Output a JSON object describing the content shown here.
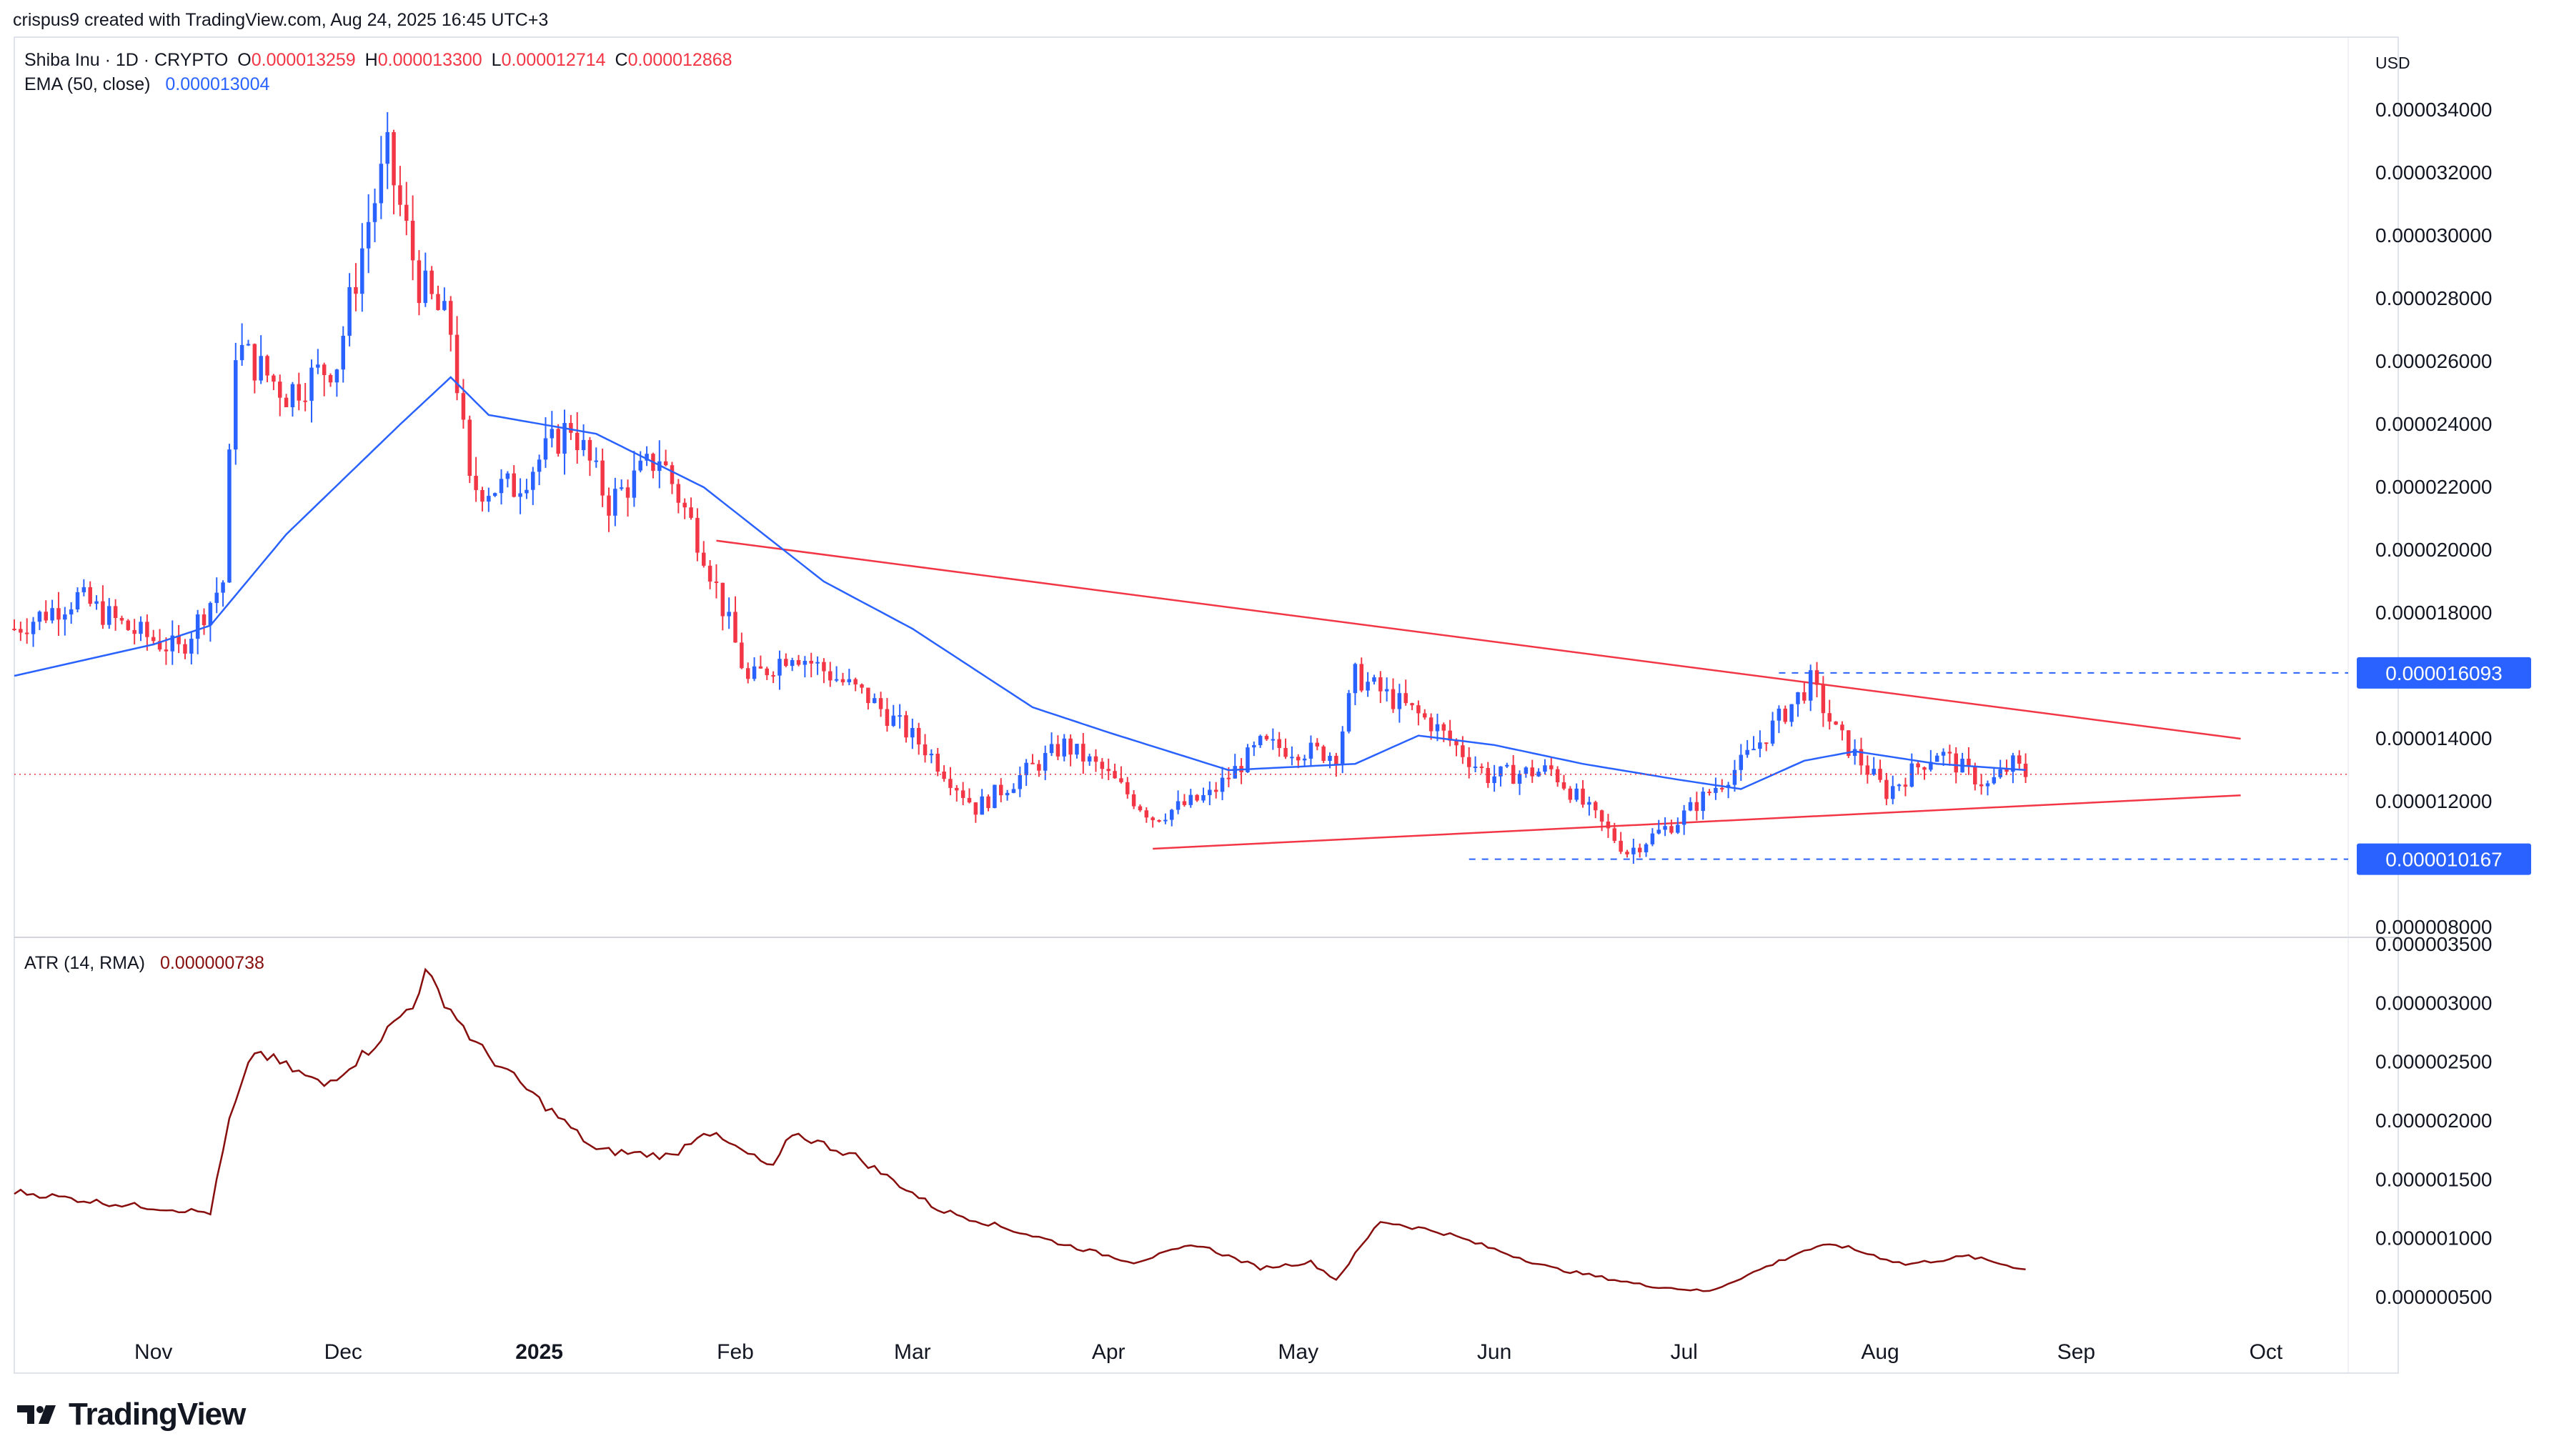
{
  "credit": "crispus9 created with TradingView.com, Aug 24, 2025 16:45 UTC+3",
  "brand": "TradingView",
  "currency": "USD",
  "ohlc_legend": {
    "symbol": "Shiba Inu · 1D · CRYPTO",
    "o_label": "O",
    "o_value": "0.000013259",
    "h_label": "H",
    "h_value": "0.000013300",
    "l_label": "L",
    "l_value": "0.000012714",
    "c_label": "C",
    "c_value": "0.000012868"
  },
  "ema_legend": {
    "label": "EMA (50, close)",
    "value": "0.000013004"
  },
  "atr_legend": {
    "label": "ATR (14, RMA)",
    "value": "0.000000738"
  },
  "price_labels": {
    "resistance": "0.000016093",
    "support": "0.000010167"
  },
  "colors": {
    "up": "#2962ff",
    "down": "#f23645",
    "ema": "#2962ff",
    "atr": "#880e0e",
    "trendline": "#f23645",
    "grid": "#e0e3eb"
  },
  "chart_data": [
    {
      "type": "candlestick",
      "title": "Shiba Inu · 1D · CRYPTO",
      "x_labels": [
        "Nov",
        "Dec",
        "2025",
        "Feb",
        "Mar",
        "Apr",
        "May",
        "Jun",
        "Jul",
        "Aug",
        "Sep",
        "Oct"
      ],
      "x_label_dates": [
        "2024-11-01",
        "2024-12-01",
        "2025-01-01",
        "2025-02-01",
        "2025-03-01",
        "2025-04-01",
        "2025-05-01",
        "2025-06-01",
        "2025-07-01",
        "2025-08-01",
        "2025-09-01",
        "2025-10-01"
      ],
      "x_range": [
        "2024-10-10",
        "2025-10-14"
      ],
      "y_ticks": [
        "0.000034000",
        "0.000032000",
        "0.000030000",
        "0.000028000",
        "0.000026000",
        "0.000024000",
        "0.000022000",
        "0.000020000",
        "0.000018000",
        "0.000014000",
        "0.000012000",
        "0.000008000"
      ],
      "ylim": [
        8e-06,
        3.53e-05
      ],
      "series_close_anchors": [
        [
          "2024-10-10",
          1.75e-05
        ],
        [
          "2024-10-20",
          1.85e-05
        ],
        [
          "2024-10-28",
          1.75e-05
        ],
        [
          "2024-11-05",
          1.68e-05
        ],
        [
          "2024-11-12",
          1.9e-05
        ],
        [
          "2024-11-14",
          2.65e-05
        ],
        [
          "2024-11-22",
          2.5e-05
        ],
        [
          "2024-11-30",
          2.6e-05
        ],
        [
          "2024-12-05",
          3.05e-05
        ],
        [
          "2024-12-08",
          3.25e-05
        ],
        [
          "2024-12-13",
          2.85e-05
        ],
        [
          "2024-12-18",
          2.7e-05
        ],
        [
          "2024-12-21",
          2.2e-05
        ],
        [
          "2024-12-28",
          2.2e-05
        ],
        [
          "2025-01-06",
          2.4e-05
        ],
        [
          "2025-01-12",
          2.15e-05
        ],
        [
          "2025-01-20",
          2.3e-05
        ],
        [
          "2025-01-27",
          2e-05
        ],
        [
          "2025-02-03",
          1.58e-05
        ],
        [
          "2025-02-10",
          1.68e-05
        ],
        [
          "2025-02-22",
          1.53e-05
        ],
        [
          "2025-03-03",
          1.37e-05
        ],
        [
          "2025-03-11",
          1.18e-05
        ],
        [
          "2025-03-25",
          1.38e-05
        ],
        [
          "2025-03-31",
          1.3e-05
        ],
        [
          "2025-04-08",
          1.15e-05
        ],
        [
          "2025-04-17",
          1.22e-05
        ],
        [
          "2025-04-25",
          1.38e-05
        ],
        [
          "2025-05-07",
          1.35e-05
        ],
        [
          "2025-05-10",
          1.6e-05
        ],
        [
          "2025-05-14",
          1.55e-05
        ],
        [
          "2025-05-22",
          1.45e-05
        ],
        [
          "2025-05-31",
          1.28e-05
        ],
        [
          "2025-06-10",
          1.3e-05
        ],
        [
          "2025-06-22",
          1.04e-05
        ],
        [
          "2025-06-30",
          1.14e-05
        ],
        [
          "2025-07-10",
          1.32e-05
        ],
        [
          "2025-07-21",
          1.58e-05
        ],
        [
          "2025-07-25",
          1.42e-05
        ],
        [
          "2025-08-02",
          1.23e-05
        ],
        [
          "2025-08-10",
          1.36e-05
        ],
        [
          "2025-08-18",
          1.25e-05
        ],
        [
          "2025-08-22",
          1.32e-05
        ],
        [
          "2025-08-24",
          1.2868e-05
        ]
      ],
      "ema_anchors": [
        [
          "2024-10-10",
          1.6e-05
        ],
        [
          "2024-11-01",
          1.7e-05
        ],
        [
          "2024-11-10",
          1.76e-05
        ],
        [
          "2024-11-22",
          2.05e-05
        ],
        [
          "2024-12-10",
          2.4e-05
        ],
        [
          "2024-12-18",
          2.55e-05
        ],
        [
          "2024-12-24",
          2.43e-05
        ],
        [
          "2025-01-10",
          2.37e-05
        ],
        [
          "2025-01-27",
          2.2e-05
        ],
        [
          "2025-02-15",
          1.9e-05
        ],
        [
          "2025-03-01",
          1.75e-05
        ],
        [
          "2025-03-20",
          1.5e-05
        ],
        [
          "2025-04-01",
          1.42e-05
        ],
        [
          "2025-04-20",
          1.3e-05
        ],
        [
          "2025-05-10",
          1.32e-05
        ],
        [
          "2025-05-20",
          1.41e-05
        ],
        [
          "2025-06-01",
          1.38e-05
        ],
        [
          "2025-06-15",
          1.32e-05
        ],
        [
          "2025-06-30",
          1.27e-05
        ],
        [
          "2025-07-10",
          1.24e-05
        ],
        [
          "2025-07-20",
          1.33e-05
        ],
        [
          "2025-07-28",
          1.36e-05
        ],
        [
          "2025-08-10",
          1.32e-05
        ],
        [
          "2025-08-24",
          1.3004e-05
        ]
      ],
      "ema_value": 1.3004e-05,
      "current_price": 1.2868e-05,
      "resistance_level": 1.6093e-05,
      "support_level": 1.0167e-05,
      "trendlines": [
        {
          "name": "upper",
          "from": [
            "2025-01-29",
            2.03e-05
          ],
          "to": [
            "2025-09-27",
            1.4e-05
          ]
        },
        {
          "name": "lower",
          "from": [
            "2025-04-08",
            1.05e-05
          ],
          "to": [
            "2025-09-27",
            1.22e-05
          ]
        }
      ],
      "horizontal_levels": [
        {
          "name": "resistance",
          "from": "2025-07-16",
          "value": 1.6093e-05
        },
        {
          "name": "support",
          "from": "2025-05-28",
          "value": 1.0167e-05
        }
      ]
    },
    {
      "type": "line",
      "title": "ATR (14, RMA)",
      "y_ticks": [
        "0.000003500",
        "0.000003000",
        "0.000002500",
        "0.000002000",
        "0.000001500",
        "0.000001000",
        "0.000000500"
      ],
      "ylim": [
        3.5e-07,
        3.5e-06
      ],
      "atr_anchors": [
        [
          "2024-10-10",
          1.4e-06
        ],
        [
          "2024-10-25",
          1.3e-06
        ],
        [
          "2024-11-10",
          1.22e-06
        ],
        [
          "2024-11-13",
          2e-06
        ],
        [
          "2024-11-17",
          2.6e-06
        ],
        [
          "2024-11-28",
          2.3e-06
        ],
        [
          "2024-12-05",
          2.6e-06
        ],
        [
          "2024-12-12",
          3e-06
        ],
        [
          "2024-12-14",
          3.25e-06
        ],
        [
          "2024-12-22",
          2.65e-06
        ],
        [
          "2025-01-10",
          1.75e-06
        ],
        [
          "2025-01-22",
          1.7e-06
        ],
        [
          "2025-01-27",
          1.92e-06
        ],
        [
          "2025-02-07",
          1.6e-06
        ],
        [
          "2025-02-10",
          1.9e-06
        ],
        [
          "2025-02-20",
          1.7e-06
        ],
        [
          "2025-03-05",
          1.25e-06
        ],
        [
          "2025-03-25",
          9.5e-07
        ],
        [
          "2025-04-05",
          8e-07
        ],
        [
          "2025-04-15",
          9.5e-07
        ],
        [
          "2025-04-25",
          7.5e-07
        ],
        [
          "2025-05-03",
          8e-07
        ],
        [
          "2025-05-07",
          6.5e-07
        ],
        [
          "2025-05-14",
          1.15e-06
        ],
        [
          "2025-05-24",
          1.05e-06
        ],
        [
          "2025-06-10",
          7.5e-07
        ],
        [
          "2025-06-25",
          6e-07
        ],
        [
          "2025-07-05",
          5.5e-07
        ],
        [
          "2025-07-20",
          9e-07
        ],
        [
          "2025-07-25",
          9.5e-07
        ],
        [
          "2025-08-05",
          7.8e-07
        ],
        [
          "2025-08-15",
          8.5e-07
        ],
        [
          "2025-08-24",
          7.38e-07
        ]
      ],
      "atr_value": 7.38e-07
    }
  ]
}
